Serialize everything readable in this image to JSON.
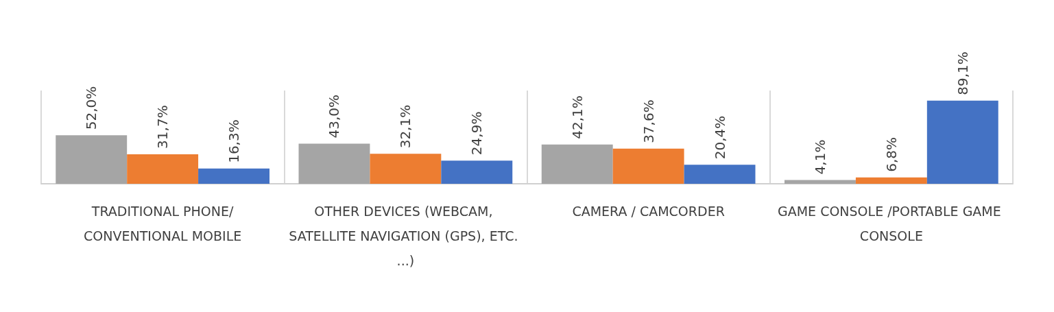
{
  "chart_data": {
    "type": "bar",
    "categories": [
      "TRADITIONAL PHONE/CONVENTIONAL MOBILE",
      "OTHER DEVICES (WEBCAM, SATELLITE NAVIGATION (GPS), ETC. ...)",
      "CAMERA / CAMCORDER",
      "GAME CONSOLE /PORTABLE GAME CONSOLE"
    ],
    "series": [
      {
        "color": "#a5a5a5",
        "values": [
          52.0,
          43.0,
          42.1,
          4.1
        ],
        "value_labels": [
          "52,0%",
          "43,0%",
          "42,1%",
          "4,1%"
        ]
      },
      {
        "color": "#ed7d31",
        "values": [
          31.7,
          32.1,
          37.6,
          6.8
        ],
        "value_labels": [
          "31,7%",
          "32,1%",
          "37,6%",
          "6,8%"
        ]
      },
      {
        "color": "#4472c4",
        "values": [
          16.3,
          24.9,
          20.4,
          89.1
        ],
        "value_labels": [
          "16,3%",
          "24,9%",
          "20,4%",
          "89,1%"
        ]
      }
    ],
    "grid": "x"
  }
}
